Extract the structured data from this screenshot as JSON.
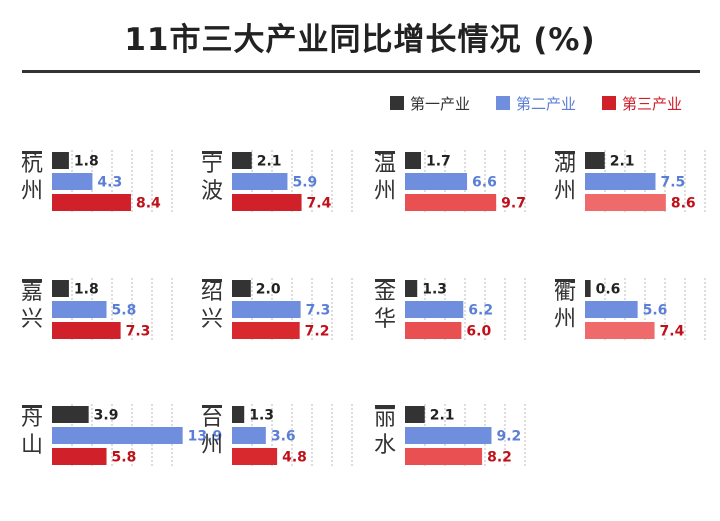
{
  "chart_data": {
    "type": "bar",
    "title": "11市三大产业同比增长情况 (%)",
    "series": [
      {
        "name": "第一产业",
        "color": "#333333"
      },
      {
        "name": "第二产业",
        "color": "#6f8fde"
      },
      {
        "name": "第三产业",
        "color": "#d0202a"
      }
    ],
    "legend_position": "top-right",
    "panels": [
      {
        "city": "杭州",
        "values": [
          1.8,
          4.3,
          8.4
        ],
        "labels": [
          "1.8",
          "4.3",
          "8.4"
        ]
      },
      {
        "city": "宁波",
        "values": [
          2.1,
          5.9,
          7.4
        ],
        "labels": [
          "2.1",
          "5.9",
          "7.4"
        ]
      },
      {
        "city": "温州",
        "values": [
          1.7,
          6.6,
          9.7
        ],
        "labels": [
          "1.7",
          "6.6",
          "9.7"
        ]
      },
      {
        "city": "湖州",
        "values": [
          2.1,
          7.5,
          8.6
        ],
        "labels": [
          "2.1",
          "7.5",
          "8.6"
        ]
      },
      {
        "city": "嘉兴",
        "values": [
          1.8,
          5.8,
          7.3
        ],
        "labels": [
          "1.8",
          "5.8",
          "7.3"
        ]
      },
      {
        "city": "绍兴",
        "values": [
          2.0,
          7.3,
          7.2
        ],
        "labels": [
          "2.0",
          "7.3",
          "7.2"
        ]
      },
      {
        "city": "金华",
        "values": [
          1.3,
          6.2,
          6.0
        ],
        "labels": [
          "1.3",
          "6.2",
          "6.0"
        ]
      },
      {
        "city": "衢州",
        "values": [
          0.6,
          5.6,
          7.4
        ],
        "labels": [
          "0.6",
          "5.6",
          "7.4"
        ]
      },
      {
        "city": "舟山",
        "values": [
          3.9,
          13.9,
          5.8
        ],
        "labels": [
          "3.9",
          "13.9",
          "5.8"
        ]
      },
      {
        "city": "台州",
        "values": [
          1.3,
          3.6,
          4.8
        ],
        "labels": [
          "1.3",
          "3.6",
          "4.8"
        ]
      },
      {
        "city": "丽水",
        "values": [
          2.1,
          9.2,
          8.2
        ],
        "labels": [
          "2.1",
          "9.2",
          "8.2"
        ]
      }
    ],
    "tertiary_colors": [
      "#d0202a",
      "#d0202a",
      "#e85052",
      "#ef6a6a",
      "#d0202a",
      "#d82a2e",
      "#e85052",
      "#ef6a6a",
      "#d0202a",
      "#d82a2e",
      "#e85052"
    ],
    "grid": true
  }
}
